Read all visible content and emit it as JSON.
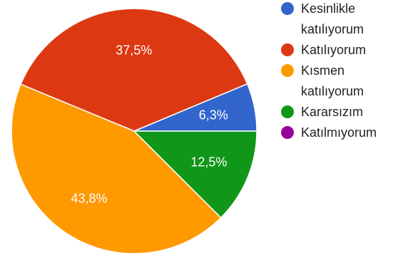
{
  "chart_data": {
    "type": "pie",
    "title": "",
    "start_angle_deg": 0,
    "direction": "counterclockwise",
    "slices": [
      {
        "label": "Kesinlikle katılıyorum",
        "legend_lines": [
          "Kesinlikle",
          "katılıyorum"
        ],
        "value": 6.3,
        "value_label": "6,3%",
        "color": "#3366cc"
      },
      {
        "label": "Katılıyorum",
        "legend_lines": [
          "Katılıyorum"
        ],
        "value": 37.5,
        "value_label": "37,5%",
        "color": "#dc3912"
      },
      {
        "label": "Kısmen katılıyorum",
        "legend_lines": [
          "Kısmen",
          "katılıyorum"
        ],
        "value": 43.8,
        "value_label": "43,8%",
        "color": "#ff9900"
      },
      {
        "label": "Kararsızım",
        "legend_lines": [
          "Kararsızım"
        ],
        "value": 12.5,
        "value_label": "12,5%",
        "color": "#109618"
      },
      {
        "label": "Katılmıyorum",
        "legend_lines": [
          "Katılmıyorum"
        ],
        "value": 0,
        "value_label": "",
        "color": "#990099"
      }
    ],
    "legend_position": "right"
  }
}
